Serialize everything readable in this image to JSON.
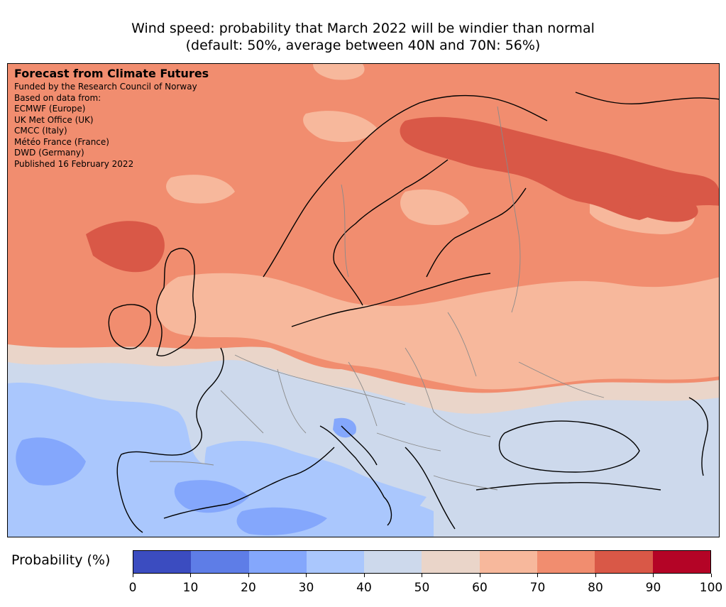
{
  "title": {
    "line1": "Wind speed: probability that March 2022 will be windier than normal",
    "line2": "(default: 50%, average between 40N and 70N: 56%)"
  },
  "info_panel": {
    "heading": "Forecast from Climate Futures",
    "lines": [
      "Funded by the Research Council of Norway",
      "Based on data from:",
      "ECMWF (Europe)",
      "UK Met Office (UK)",
      "CMCC (Italy)",
      "Météo France (France)",
      "DWD (Germany)",
      "Published 16 February 2022"
    ]
  },
  "colorbar": {
    "label": "Probability (%)",
    "ticks": [
      "0",
      "10",
      "20",
      "30",
      "40",
      "50",
      "60",
      "70",
      "80",
      "90",
      "100"
    ],
    "colors": [
      "#3b4cc0",
      "#5e7de7",
      "#84a7fc",
      "#aac7fd",
      "#cdd9ec",
      "#ead5c9",
      "#f7b89c",
      "#f18d6f",
      "#d95847",
      "#b40426"
    ]
  },
  "map": {
    "region": "Europe",
    "field_classes": {
      "c30": "#aac7fd",
      "c40": "#cdd9ec",
      "c50": "#ead5c9",
      "c60": "#f7b89c",
      "c70": "#f18d6f",
      "c80": "#d95847",
      "c20": "#84a7fc"
    }
  }
}
